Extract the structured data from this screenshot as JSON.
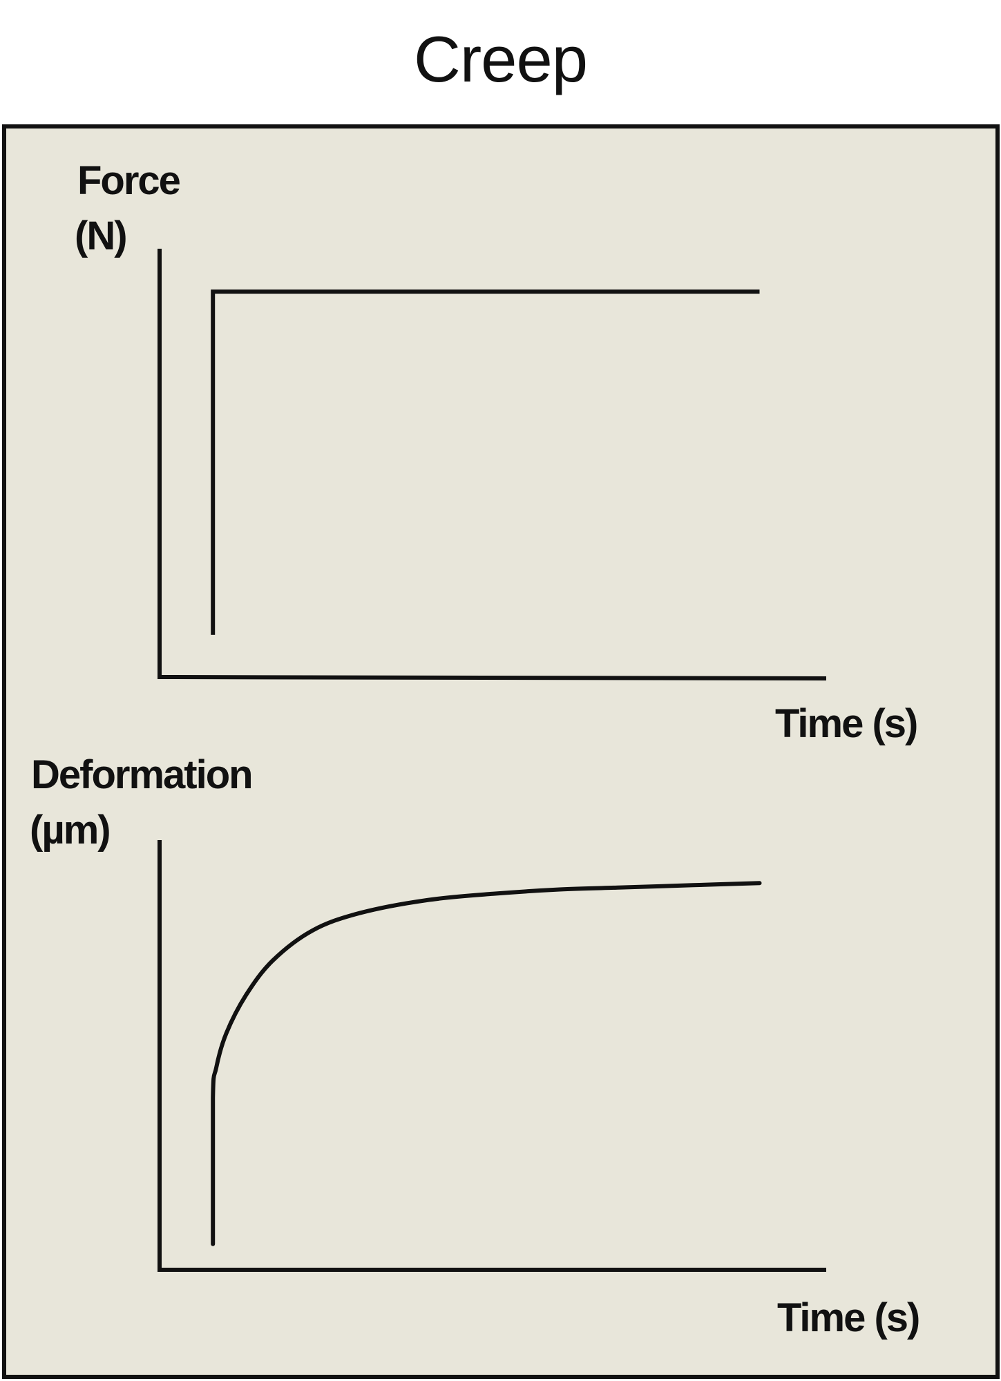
{
  "title": "Creep",
  "colors": {
    "panel_background": "#e8e6da",
    "line": "#111111",
    "page_background": "#ffffff"
  },
  "chart_data": [
    {
      "type": "line",
      "ylabel": [
        "Force",
        "(N)"
      ],
      "xlabel": "Time (s)",
      "grid": false,
      "ticks": false,
      "description_shape": "step",
      "xlim": [
        0,
        10
      ],
      "ylim": [
        0,
        1
      ],
      "series": [
        {
          "x": [
            0.8,
            0.8,
            9.0
          ],
          "y": [
            0.1,
            0.9,
            0.9
          ]
        }
      ]
    },
    {
      "type": "line",
      "ylabel": [
        "Deformation",
        "(µm)"
      ],
      "xlabel": "Time (s)",
      "grid": false,
      "ticks": false,
      "xlim": [
        0,
        10
      ],
      "ylim": [
        0,
        1
      ],
      "series": [
        {
          "x": [
            0.8,
            0.8,
            0.85,
            1.0,
            1.3,
            1.7,
            2.3,
            3.0,
            4.0,
            5.0,
            6.0,
            7.0,
            8.0,
            9.0
          ],
          "y": [
            0.06,
            0.4,
            0.47,
            0.55,
            0.64,
            0.72,
            0.79,
            0.83,
            0.86,
            0.875,
            0.885,
            0.89,
            0.895,
            0.9
          ]
        }
      ]
    }
  ]
}
